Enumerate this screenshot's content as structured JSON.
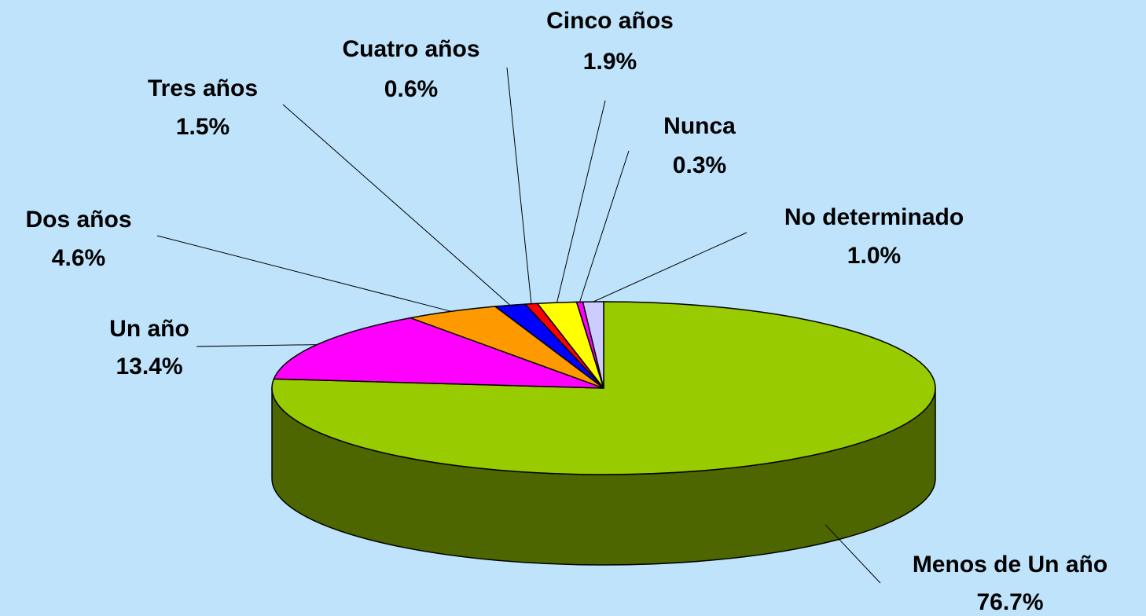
{
  "chart_data": {
    "type": "pie",
    "categories": [
      "Menos de Un año",
      "Un año",
      "Dos años",
      "Tres años",
      "Cuatro años",
      "Cinco años",
      "Nunca",
      "No determinado"
    ],
    "values": [
      76.7,
      13.4,
      4.6,
      1.5,
      0.6,
      1.9,
      0.3,
      1.0
    ],
    "value_labels": [
      "76.7%",
      "13.4%",
      "4.6%",
      "1.5%",
      "0.6%",
      "1.9%",
      "0.3%",
      "1.0%"
    ],
    "colors": [
      "#99cc00",
      "#ff00ff",
      "#ff9900",
      "#0000ff",
      "#ff0000",
      "#ffff00",
      "#ff00ff",
      "#ccccff"
    ]
  }
}
